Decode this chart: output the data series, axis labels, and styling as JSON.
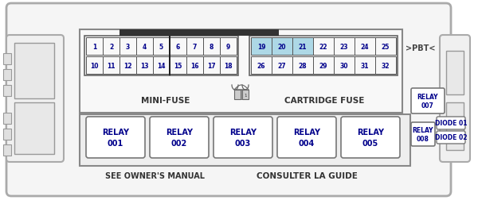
{
  "bg_color": "#ffffff",
  "fuse_row1": [
    "1",
    "2",
    "3",
    "4",
    "5",
    "6",
    "7",
    "8",
    "9"
  ],
  "fuse_row2": [
    "10",
    "11",
    "12",
    "13",
    "14",
    "15",
    "16",
    "17",
    "18"
  ],
  "fuse_row3": [
    "19",
    "20",
    "21",
    "22",
    "23",
    "24",
    "25"
  ],
  "fuse_row4": [
    "26",
    "27",
    "28",
    "29",
    "30",
    "31",
    "32"
  ],
  "relay_boxes": [
    "RELAY\n001",
    "RELAY\n002",
    "RELAY\n003",
    "RELAY\n004",
    "RELAY\n005"
  ],
  "relay_007": "RELAY\n007",
  "relay_008": "RELAY\n008",
  "diode_01": "DIODE 01",
  "diode_02": "DIODE 02",
  "pbt_label": ">PBT<",
  "mini_fuse_label": "MINI-FUSE",
  "cartridge_fuse_label": "CARTRIDGE FUSE",
  "bottom_left": "SEE OWNER'S MANUAL",
  "bottom_right": "CONSULTER LA GUIDE",
  "highlighted_fuses": [
    "19",
    "20",
    "21"
  ],
  "highlight_color": "#add8e6",
  "text_color": "#00008b",
  "line_color": "#888888",
  "dark_color": "#555555"
}
